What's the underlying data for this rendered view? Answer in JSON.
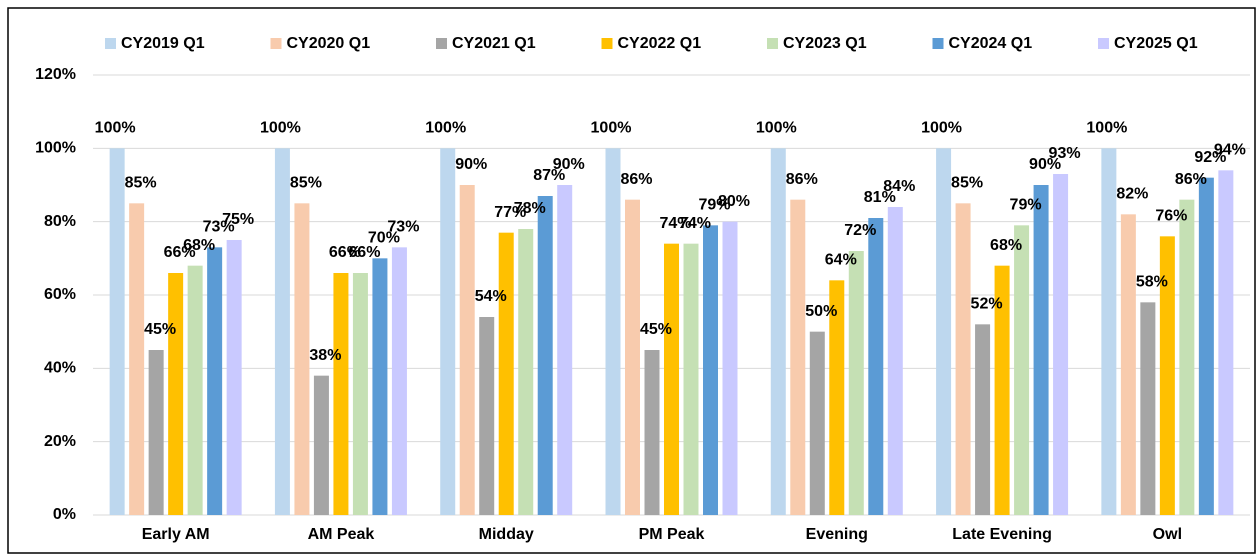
{
  "chart_data": {
    "type": "bar",
    "categories": [
      "Early AM",
      "AM Peak",
      "Midday",
      "PM Peak",
      "Evening",
      "Late Evening",
      "Owl"
    ],
    "series": [
      {
        "name": "CY2019 Q1",
        "color": "#bdd7ee",
        "values": [
          100,
          100,
          100,
          100,
          100,
          100,
          100
        ],
        "value_labels": [
          "100%",
          "100%",
          "100%",
          "100%",
          "100%",
          "100%",
          "100%"
        ]
      },
      {
        "name": "CY2020 Q1",
        "color": "#f8cbad",
        "values": [
          85,
          85,
          90,
          86,
          86,
          85,
          82
        ],
        "value_labels": [
          "85%",
          "85%",
          "90%",
          "86%",
          "86%",
          "85%",
          "82%"
        ]
      },
      {
        "name": "CY2021 Q1",
        "color": "#a5a5a5",
        "values": [
          45,
          38,
          54,
          45,
          50,
          52,
          58
        ],
        "value_labels": [
          "45%",
          "38%",
          "54%",
          "45%",
          "50%",
          "52%",
          "58%"
        ]
      },
      {
        "name": "CY2022 Q1",
        "color": "#ffc000",
        "values": [
          66,
          66,
          77,
          74,
          64,
          68,
          76
        ],
        "value_labels": [
          "66%",
          "66%",
          "77%",
          "74%",
          "64%",
          "68%",
          "76%"
        ]
      },
      {
        "name": "CY2023 Q1",
        "color": "#c5e0b4",
        "values": [
          68,
          66,
          78,
          74,
          72,
          79,
          86
        ],
        "value_labels": [
          "68%",
          "66%",
          "78%",
          "74%",
          "72%",
          "79%",
          "86%"
        ]
      },
      {
        "name": "CY2024 Q1",
        "color": "#5b9bd5",
        "values": [
          73,
          70,
          87,
          79,
          81,
          90,
          92
        ],
        "value_labels": [
          "73%",
          "70%",
          "87%",
          "79%",
          "81%",
          "90%",
          "92%"
        ]
      },
      {
        "name": "CY2025 Q1",
        "color": "#c9c9ff",
        "values": [
          75,
          73,
          90,
          80,
          84,
          93,
          94
        ],
        "value_labels": [
          "75%",
          "73%",
          "90%",
          "80%",
          "84%",
          "93%",
          "94%"
        ]
      }
    ],
    "ylim": [
      0,
      120
    ],
    "yticks": [
      {
        "value": 0,
        "label": "0%"
      },
      {
        "value": 20,
        "label": "20%"
      },
      {
        "value": 40,
        "label": "40%"
      },
      {
        "value": 60,
        "label": "60%"
      },
      {
        "value": 80,
        "label": "80%"
      },
      {
        "value": 100,
        "label": "100%"
      },
      {
        "value": 120,
        "label": "120%"
      }
    ],
    "grid": true,
    "legend": "top"
  }
}
